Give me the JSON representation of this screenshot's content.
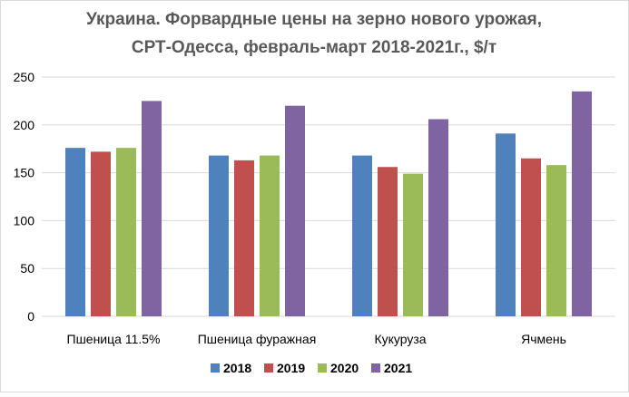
{
  "chart_data": {
    "type": "bar",
    "title_line1": "Украина. Форвардные цены на зерно нового урожая,",
    "title_line2": "СРТ-Одесса, февраль-март 2018-2021г., $/т",
    "xlabel": "",
    "ylabel": "",
    "ylim": [
      0,
      250
    ],
    "yticks": [
      0,
      50,
      100,
      150,
      200,
      250
    ],
    "grid": true,
    "legend_position": "bottom",
    "categories": [
      "Пшеница 11.5%",
      "Пшеница фуражная",
      "Кукуруза",
      "Ячмень"
    ],
    "series": [
      {
        "name": "2018",
        "color": "#4F81BD",
        "values": [
          176,
          168,
          168,
          191
        ]
      },
      {
        "name": "2019",
        "color": "#C0504D",
        "values": [
          172,
          163,
          156,
          165
        ]
      },
      {
        "name": "2020",
        "color": "#9BBB59",
        "values": [
          176,
          168,
          149,
          158
        ]
      },
      {
        "name": "2021",
        "color": "#8064A2",
        "values": [
          225,
          220,
          206,
          235
        ]
      }
    ]
  },
  "colors": {
    "title": "#595959",
    "axis_text": "#000000",
    "grid": "#D9D9D9",
    "frame": "#D9D9D9"
  }
}
